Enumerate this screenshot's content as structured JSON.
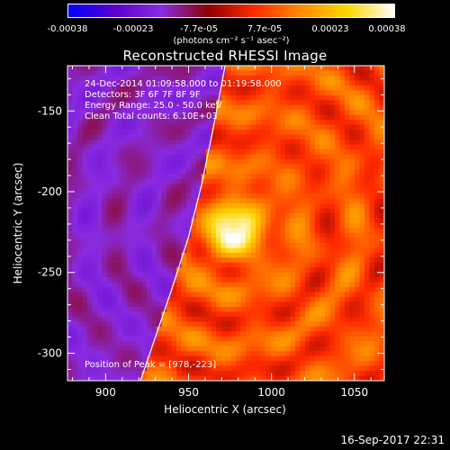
{
  "colorbar": {
    "tick_labels": [
      "-0.00038",
      "-0.00023",
      "-7.7e-05",
      "7.7e-05",
      "0.00023",
      "0.00038"
    ],
    "tick_values": [
      -0.00038,
      -0.00023,
      -7.7e-05,
      7.7e-05,
      0.00023,
      0.00038
    ],
    "range": [
      -0.00038,
      0.00038
    ],
    "unit_label": "(photons cm⁻² s⁻¹ asec⁻²)",
    "colors": [
      "#0000ff",
      "#5a00c8",
      "#8a2be2",
      "#8b0000",
      "#ff2a00",
      "#ff8c00",
      "#ffd700",
      "#ffffff"
    ]
  },
  "chart_data": {
    "type": "heatmap",
    "title": "Reconstructed RHESSI Image",
    "xlabel": "Heliocentric X (arcsec)",
    "ylabel": "Heliocentric Y (arcsec)",
    "xlim": [
      877,
      1068
    ],
    "ylim": [
      -317,
      -122
    ],
    "x_ticks": [
      900,
      950,
      1000,
      1050
    ],
    "y_ticks": [
      -150,
      -200,
      -250,
      -300
    ],
    "grid": false,
    "peak": {
      "x": 978,
      "y": -223
    },
    "limb_curve": [
      [
        921,
        -317
      ],
      [
        930,
        -290
      ],
      [
        940,
        -260
      ],
      [
        950,
        -228
      ],
      [
        958,
        -195
      ],
      [
        966,
        -155
      ],
      [
        972,
        -122
      ]
    ],
    "annotations": {
      "time_range": "24-Dec-2014 01:09:58.000 to 01:19:58.000",
      "detectors": "Detectors: 3F 6F 7F 8F 9F",
      "energy_range": "Energy Range: 25.0 - 50.0 keV",
      "method_counts": "Clean     Total counts: 6.10E+03",
      "peak_position": "Position of Peak = [978,-223]"
    }
  },
  "footer": {
    "timestamp": "16-Sep-2017 22:31"
  }
}
